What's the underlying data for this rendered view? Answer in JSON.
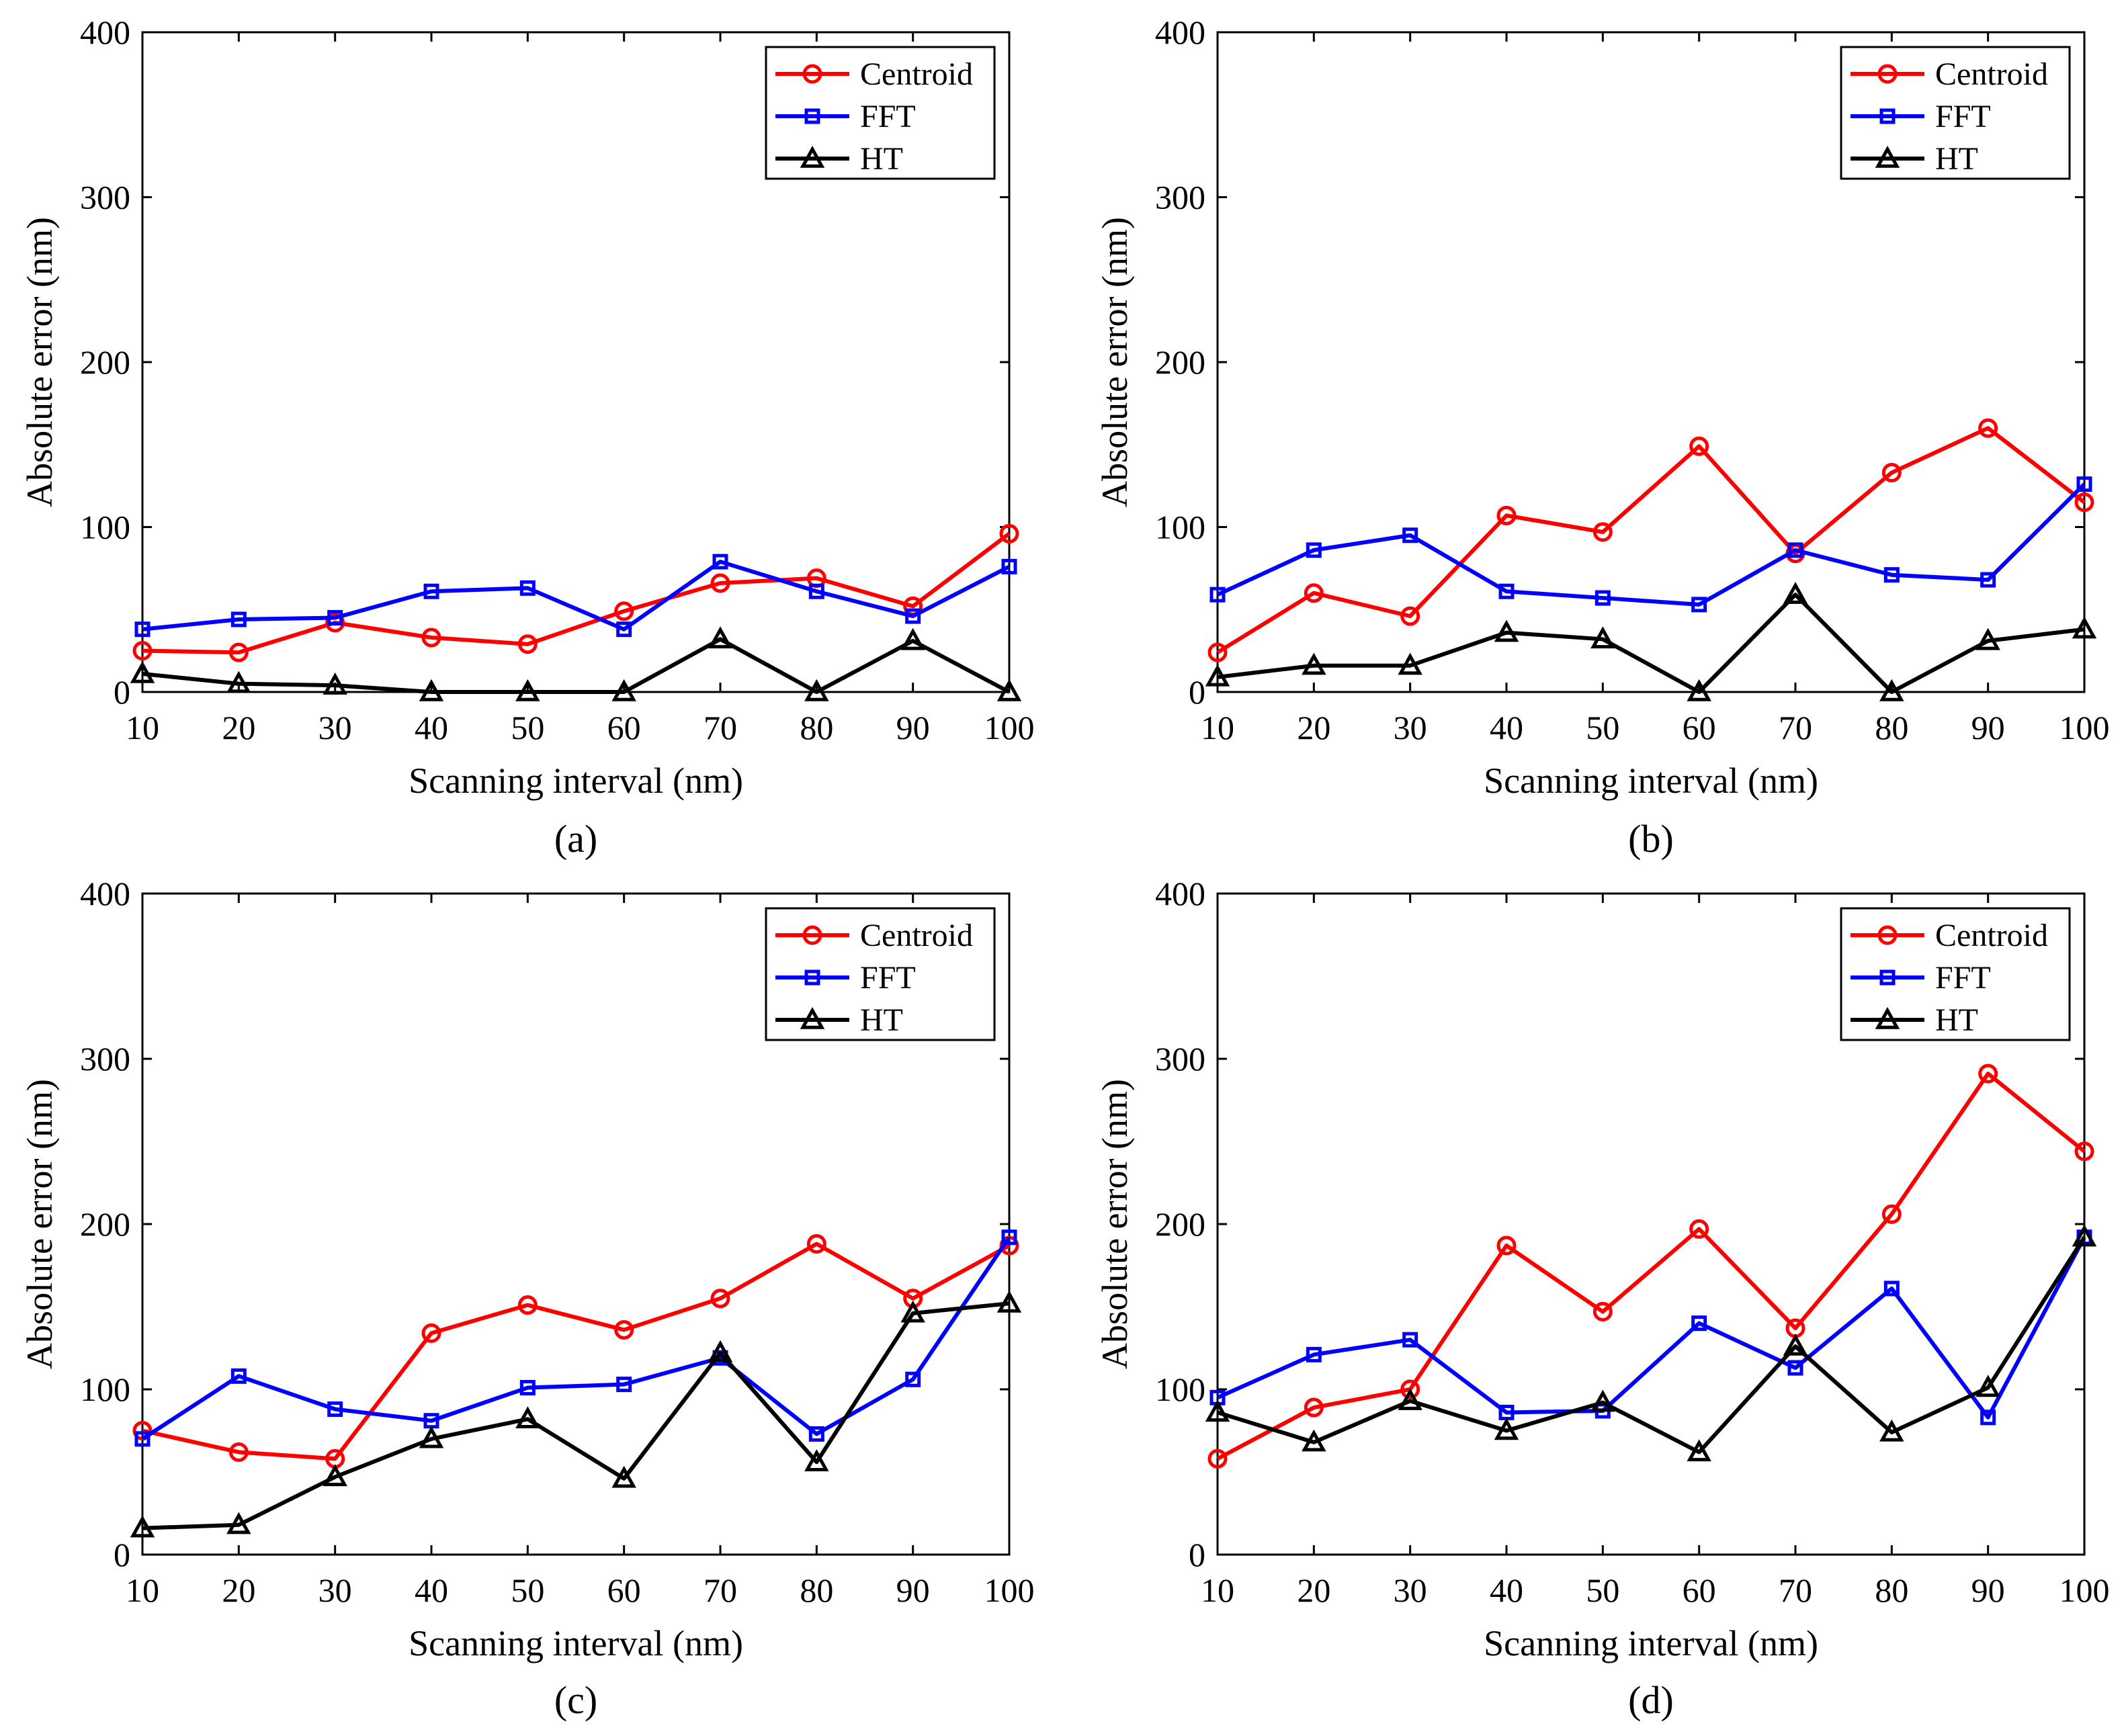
{
  "figure": {
    "panels": [
      {
        "label": "(a)"
      },
      {
        "label": "(b)"
      },
      {
        "label": "(c)"
      },
      {
        "label": "(d)"
      }
    ]
  },
  "chart_data": [
    {
      "type": "line",
      "panel_label": "(a)",
      "xlabel": "Scanning interval (nm)",
      "ylabel": "Absolute error (nm)",
      "xlim": [
        10,
        100
      ],
      "ylim": [
        0,
        400
      ],
      "xticks": [
        10,
        20,
        30,
        40,
        50,
        60,
        70,
        80,
        90,
        100
      ],
      "yticks": [
        0,
        100,
        200,
        300,
        400
      ],
      "grid": false,
      "legend_position": "top-right",
      "x": [
        10,
        20,
        30,
        40,
        50,
        60,
        70,
        80,
        90,
        100
      ],
      "series": [
        {
          "name": "Centroid",
          "color": "#ff0000",
          "marker": "circle",
          "values": [
            25,
            24,
            42,
            33,
            29,
            49,
            66,
            69,
            52,
            96
          ]
        },
        {
          "name": "FFT",
          "color": "#0000ff",
          "marker": "square",
          "values": [
            38,
            44,
            45,
            61,
            63,
            38,
            79,
            61,
            46,
            76
          ]
        },
        {
          "name": "HT",
          "color": "#000000",
          "marker": "triangle",
          "values": [
            11,
            5,
            4,
            0,
            0,
            0,
            32,
            0,
            31,
            0
          ]
        }
      ]
    },
    {
      "type": "line",
      "panel_label": "(b)",
      "xlabel": "Scanning interval (nm)",
      "ylabel": "Absolute error (nm)",
      "xlim": [
        10,
        100
      ],
      "ylim": [
        0,
        400
      ],
      "xticks": [
        10,
        20,
        30,
        40,
        50,
        60,
        70,
        80,
        90,
        100
      ],
      "yticks": [
        0,
        100,
        200,
        300,
        400
      ],
      "grid": false,
      "legend_position": "top-right",
      "x": [
        10,
        20,
        30,
        40,
        50,
        60,
        70,
        80,
        90,
        100
      ],
      "series": [
        {
          "name": "Centroid",
          "color": "#ff0000",
          "marker": "circle",
          "values": [
            24,
            60,
            46,
            107,
            97,
            149,
            84,
            133,
            160,
            115
          ]
        },
        {
          "name": "FFT",
          "color": "#0000ff",
          "marker": "square",
          "values": [
            59,
            86,
            95,
            61,
            57,
            53,
            86,
            71,
            68,
            126
          ]
        },
        {
          "name": "HT",
          "color": "#000000",
          "marker": "triangle",
          "values": [
            9,
            16,
            16,
            36,
            32,
            0,
            59,
            0,
            31,
            38
          ]
        }
      ]
    },
    {
      "type": "line",
      "panel_label": "(c)",
      "xlabel": "Scanning interval (nm)",
      "ylabel": "Absolute error (nm)",
      "xlim": [
        10,
        100
      ],
      "ylim": [
        0,
        400
      ],
      "xticks": [
        10,
        20,
        30,
        40,
        50,
        60,
        70,
        80,
        90,
        100
      ],
      "yticks": [
        0,
        100,
        200,
        300,
        400
      ],
      "grid": false,
      "legend_position": "top-right",
      "x": [
        10,
        20,
        30,
        40,
        50,
        60,
        70,
        80,
        90,
        100
      ],
      "series": [
        {
          "name": "Centroid",
          "color": "#ff0000",
          "marker": "circle",
          "values": [
            75,
            62,
            58,
            134,
            151,
            136,
            155,
            188,
            155,
            187
          ]
        },
        {
          "name": "FFT",
          "color": "#0000ff",
          "marker": "square",
          "values": [
            70,
            108,
            88,
            81,
            101,
            103,
            119,
            73,
            106,
            192
          ]
        },
        {
          "name": "HT",
          "color": "#000000",
          "marker": "triangle",
          "values": [
            16,
            18,
            47,
            70,
            82,
            46,
            122,
            56,
            146,
            152
          ]
        }
      ]
    },
    {
      "type": "line",
      "panel_label": "(d)",
      "xlabel": "Scanning interval (nm)",
      "ylabel": "Absolute error (nm)",
      "xlim": [
        10,
        100
      ],
      "ylim": [
        0,
        400
      ],
      "xticks": [
        10,
        20,
        30,
        40,
        50,
        60,
        70,
        80,
        90,
        100
      ],
      "yticks": [
        0,
        100,
        200,
        300,
        400
      ],
      "grid": false,
      "legend_position": "top-right",
      "x": [
        10,
        20,
        30,
        40,
        50,
        60,
        70,
        80,
        90,
        100
      ],
      "series": [
        {
          "name": "Centroid",
          "color": "#ff0000",
          "marker": "circle",
          "values": [
            58,
            89,
            100,
            187,
            147,
            197,
            137,
            206,
            291,
            244
          ]
        },
        {
          "name": "FFT",
          "color": "#0000ff",
          "marker": "square",
          "values": [
            95,
            121,
            130,
            86,
            87,
            140,
            113,
            161,
            83,
            192
          ]
        },
        {
          "name": "HT",
          "color": "#000000",
          "marker": "triangle",
          "values": [
            86,
            68,
            93,
            75,
            92,
            62,
            126,
            74,
            101,
            192
          ]
        }
      ]
    }
  ]
}
